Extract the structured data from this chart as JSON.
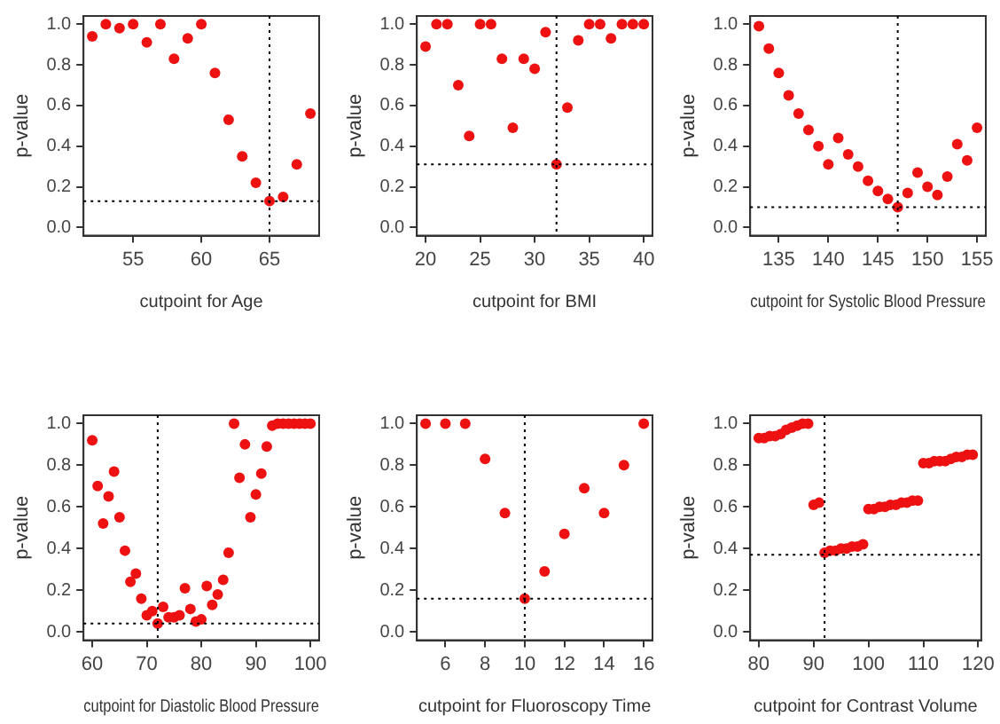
{
  "chart_data": [
    {
      "type": "scatter",
      "xlabel": "cutpoint for Age",
      "ylabel": "p-value",
      "marker": "circle",
      "grid": false,
      "legend": false,
      "xlim": [
        51.36,
        68.64
      ],
      "xticks": [
        55,
        60,
        65
      ],
      "ylim": [
        -0.04,
        1.04
      ],
      "yticks": [
        {
          "value": 0,
          "label": "0.0"
        },
        {
          "value": 0.2,
          "label": "0.2"
        },
        {
          "value": 0.4,
          "label": "0.4"
        },
        {
          "value": 0.6,
          "label": "0.6"
        },
        {
          "value": 0.8,
          "label": "0.8"
        },
        {
          "value": 1,
          "label": "1.0"
        }
      ],
      "ref_lines": [
        {
          "axis": "x",
          "value": 65,
          "line_style": "dotted",
          "color": "#000000"
        },
        {
          "axis": "y",
          "value": 0.13,
          "line_style": "dotted",
          "color": "#000000"
        }
      ],
      "series": [
        {
          "color": "#ee1111",
          "x": [
            52,
            53,
            54,
            55,
            56,
            57,
            58,
            59,
            60,
            61,
            62,
            63,
            64,
            65,
            66,
            67,
            68
          ],
          "values": [
            0.94,
            1.0,
            0.98,
            1.0,
            0.91,
            1.0,
            0.83,
            0.93,
            1.0,
            0.76,
            0.53,
            0.35,
            0.22,
            0.13,
            0.15,
            0.31,
            0.56
          ]
        }
      ]
    },
    {
      "type": "scatter",
      "xlabel": "cutpoint for BMI",
      "ylabel": "p-value",
      "marker": "circle",
      "grid": false,
      "legend": false,
      "xlim": [
        19.2,
        40.8
      ],
      "xticks": [
        20,
        25,
        30,
        35,
        40
      ],
      "ylim": [
        -0.04,
        1.04
      ],
      "yticks": [
        {
          "value": 0,
          "label": "0.0"
        },
        {
          "value": 0.2,
          "label": "0.2"
        },
        {
          "value": 0.4,
          "label": "0.4"
        },
        {
          "value": 0.6,
          "label": "0.6"
        },
        {
          "value": 0.8,
          "label": "0.8"
        },
        {
          "value": 1,
          "label": "1.0"
        }
      ],
      "ref_lines": [
        {
          "axis": "x",
          "value": 32,
          "line_style": "dotted",
          "color": "#000000"
        },
        {
          "axis": "y",
          "value": 0.31,
          "line_style": "dotted",
          "color": "#000000"
        }
      ],
      "series": [
        {
          "color": "#ee1111",
          "x": [
            20,
            21,
            22,
            23,
            24,
            25,
            26,
            27,
            28,
            29,
            30,
            31,
            32,
            33,
            34,
            35,
            36,
            37,
            38,
            39,
            40
          ],
          "values": [
            0.89,
            1.0,
            1.0,
            0.7,
            0.45,
            1.0,
            1.0,
            0.83,
            0.49,
            0.83,
            0.78,
            0.96,
            0.31,
            0.59,
            0.92,
            1.0,
            1.0,
            0.93,
            1.0,
            1.0,
            1.0
          ]
        }
      ]
    },
    {
      "type": "scatter",
      "xlabel": "cutpoint for Systolic Blood Pressure",
      "ylabel": "p-value",
      "marker": "circle",
      "grid": false,
      "legend": false,
      "xlim": [
        132.12,
        155.88
      ],
      "xticks": [
        135,
        140,
        145,
        150,
        155
      ],
      "ylim": [
        -0.04,
        1.04
      ],
      "yticks": [
        {
          "value": 0,
          "label": "0.0"
        },
        {
          "value": 0.2,
          "label": "0.2"
        },
        {
          "value": 0.4,
          "label": "0.4"
        },
        {
          "value": 0.6,
          "label": "0.6"
        },
        {
          "value": 0.8,
          "label": "0.8"
        },
        {
          "value": 1,
          "label": "1.0"
        }
      ],
      "ref_lines": [
        {
          "axis": "x",
          "value": 147,
          "line_style": "dotted",
          "color": "#000000"
        },
        {
          "axis": "y",
          "value": 0.1,
          "line_style": "dotted",
          "color": "#000000"
        }
      ],
      "series": [
        {
          "color": "#ee1111",
          "x": [
            133,
            134,
            135,
            136,
            137,
            138,
            139,
            140,
            141,
            142,
            143,
            144,
            145,
            146,
            147,
            148,
            149,
            150,
            151,
            152,
            153,
            154,
            155
          ],
          "values": [
            0.99,
            0.88,
            0.76,
            0.65,
            0.56,
            0.48,
            0.4,
            0.31,
            0.44,
            0.36,
            0.3,
            0.23,
            0.18,
            0.14,
            0.1,
            0.17,
            0.27,
            0.2,
            0.16,
            0.25,
            0.41,
            0.33,
            0.49
          ]
        }
      ]
    },
    {
      "type": "scatter",
      "xlabel": "cutpoint for Diastolic Blood Pressure",
      "ylabel": "p-value",
      "marker": "circle",
      "grid": false,
      "legend": false,
      "xlim": [
        58.4,
        101.6
      ],
      "xticks": [
        60,
        70,
        80,
        90,
        100
      ],
      "ylim": [
        -0.04,
        1.04
      ],
      "yticks": [
        {
          "value": 0,
          "label": "0.0"
        },
        {
          "value": 0.2,
          "label": "0.2"
        },
        {
          "value": 0.4,
          "label": "0.4"
        },
        {
          "value": 0.6,
          "label": "0.6"
        },
        {
          "value": 0.8,
          "label": "0.8"
        },
        {
          "value": 1,
          "label": "1.0"
        }
      ],
      "ref_lines": [
        {
          "axis": "x",
          "value": 72,
          "line_style": "dotted",
          "color": "#000000"
        },
        {
          "axis": "y",
          "value": 0.04,
          "line_style": "dotted",
          "color": "#000000"
        }
      ],
      "series": [
        {
          "color": "#ee1111",
          "x": [
            60,
            61,
            62,
            63,
            64,
            65,
            66,
            67,
            68,
            69,
            70,
            71,
            72,
            73,
            74,
            75,
            76,
            77,
            78,
            79,
            80,
            81,
            82,
            83,
            84,
            85,
            86,
            87,
            88,
            89,
            90,
            91,
            92,
            93,
            94,
            95,
            96,
            97,
            98,
            99,
            100
          ],
          "values": [
            0.92,
            0.7,
            0.52,
            0.65,
            0.77,
            0.55,
            0.39,
            0.24,
            0.28,
            0.16,
            0.08,
            0.1,
            0.04,
            0.12,
            0.07,
            0.07,
            0.08,
            0.21,
            0.11,
            0.05,
            0.06,
            0.22,
            0.13,
            0.18,
            0.25,
            0.38,
            1.0,
            0.74,
            0.9,
            0.55,
            0.66,
            0.76,
            0.89,
            0.99,
            1.0,
            1.0,
            1.0,
            1.0,
            1.0,
            1.0,
            1.0
          ]
        }
      ]
    },
    {
      "type": "scatter",
      "xlabel": "cutpoint for Fluoroscopy Time",
      "ylabel": "p-value",
      "marker": "circle",
      "grid": false,
      "legend": false,
      "xlim": [
        4.56,
        16.44
      ],
      "xticks": [
        6,
        8,
        10,
        12,
        14,
        16
      ],
      "ylim": [
        -0.04,
        1.04
      ],
      "yticks": [
        {
          "value": 0,
          "label": "0.0"
        },
        {
          "value": 0.2,
          "label": "0.2"
        },
        {
          "value": 0.4,
          "label": "0.4"
        },
        {
          "value": 0.6,
          "label": "0.6"
        },
        {
          "value": 0.8,
          "label": "0.8"
        },
        {
          "value": 1,
          "label": "1.0"
        }
      ],
      "ref_lines": [
        {
          "axis": "x",
          "value": 10,
          "line_style": "dotted",
          "color": "#000000"
        },
        {
          "axis": "y",
          "value": 0.16,
          "line_style": "dotted",
          "color": "#000000"
        }
      ],
      "series": [
        {
          "color": "#ee1111",
          "x": [
            5,
            6,
            7,
            8,
            9,
            10,
            11,
            12,
            13,
            14,
            15,
            16
          ],
          "values": [
            1.0,
            1.0,
            1.0,
            0.83,
            0.57,
            0.16,
            0.29,
            0.47,
            0.69,
            0.57,
            0.8,
            1.0
          ]
        }
      ]
    },
    {
      "type": "scatter",
      "xlabel": "cutpoint for Contrast Volume",
      "ylabel": "p-value",
      "marker": "circle",
      "grid": false,
      "legend": false,
      "xlim": [
        78.44,
        120.56
      ],
      "xticks": [
        80,
        90,
        100,
        110,
        120
      ],
      "ylim": [
        -0.04,
        1.04
      ],
      "yticks": [
        {
          "value": 0,
          "label": "0.0"
        },
        {
          "value": 0.2,
          "label": "0.2"
        },
        {
          "value": 0.4,
          "label": "0.4"
        },
        {
          "value": 0.6,
          "label": "0.6"
        },
        {
          "value": 0.8,
          "label": "0.8"
        },
        {
          "value": 1,
          "label": "1.0"
        }
      ],
      "ref_lines": [
        {
          "axis": "x",
          "value": 92,
          "line_style": "dotted",
          "color": "#000000"
        },
        {
          "axis": "y",
          "value": 0.37,
          "line_style": "dotted",
          "color": "#000000"
        }
      ],
      "series": [
        {
          "color": "#ee1111",
          "x": [
            80,
            81,
            82,
            83,
            84,
            85,
            86,
            87,
            88,
            89,
            90,
            91,
            92,
            93,
            94,
            95,
            96,
            97,
            98,
            99,
            100,
            101,
            102,
            103,
            104,
            105,
            106,
            107,
            108,
            109,
            110,
            111,
            112,
            113,
            114,
            115,
            116,
            117,
            118,
            119
          ],
          "values": [
            0.93,
            0.93,
            0.94,
            0.94,
            0.95,
            0.97,
            0.98,
            0.99,
            1.0,
            1.0,
            0.61,
            0.62,
            0.38,
            0.39,
            0.39,
            0.4,
            0.4,
            0.41,
            0.41,
            0.42,
            0.59,
            0.59,
            0.6,
            0.6,
            0.61,
            0.61,
            0.62,
            0.62,
            0.63,
            0.63,
            0.81,
            0.81,
            0.82,
            0.82,
            0.82,
            0.83,
            0.84,
            0.84,
            0.85,
            0.85
          ]
        }
      ]
    }
  ]
}
